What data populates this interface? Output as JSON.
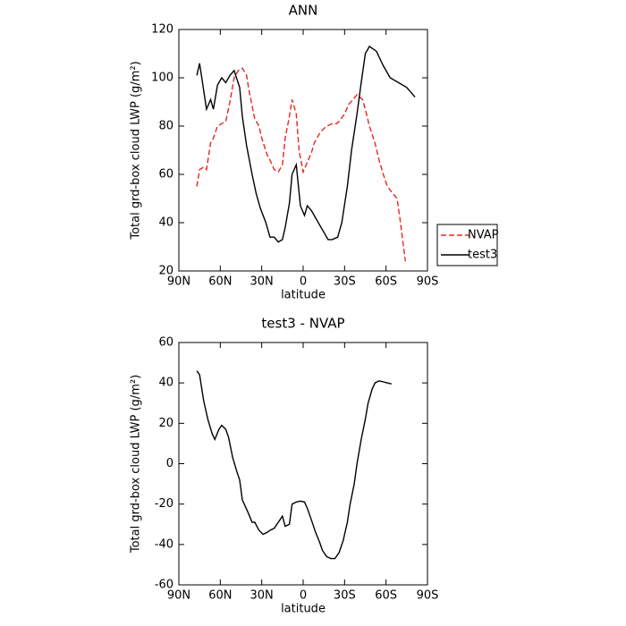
{
  "chart_data": [
    {
      "type": "line",
      "title": "ANN",
      "xlabel": "latitude",
      "ylabel": "Total grd-box cloud LWP (g/m²)",
      "xlim": [
        90,
        -90
      ],
      "xticks": [
        {
          "value": 90,
          "label": "90N"
        },
        {
          "value": 60,
          "label": "60N"
        },
        {
          "value": 30,
          "label": "30N"
        },
        0,
        {
          "value": -30,
          "label": "30S"
        },
        {
          "value": -60,
          "label": "60S"
        },
        {
          "value": -90,
          "label": "90S"
        }
      ],
      "ylim": [
        20,
        120
      ],
      "yticks": [
        20,
        40,
        60,
        80,
        100,
        120
      ],
      "legend": "right",
      "series": [
        {
          "name": "NVAP",
          "color": "#e8261f",
          "dash": true,
          "x": [
            77,
            75,
            72,
            70,
            67,
            65,
            62,
            59,
            56,
            53,
            50,
            47,
            44,
            41,
            39,
            35,
            32,
            30,
            26,
            24,
            21,
            18,
            15,
            13,
            10,
            8,
            5,
            3,
            0,
            -3,
            -6,
            -8,
            -12,
            -15,
            -17,
            -21,
            -24,
            -26,
            -30,
            -33,
            -36,
            -39,
            -43,
            -45,
            -48,
            -52,
            -55,
            -58,
            -61,
            -65,
            -68,
            -70,
            -72,
            -74
          ],
          "values": [
            55,
            62,
            63,
            62,
            73,
            75,
            80,
            81,
            82,
            90,
            100,
            103,
            104,
            101,
            94,
            83,
            80,
            75,
            68,
            66,
            62,
            61,
            64,
            75,
            84,
            91,
            85,
            70,
            61,
            65,
            69,
            73,
            77,
            79,
            80,
            81,
            81,
            82,
            85,
            89,
            91,
            93,
            91,
            87,
            80,
            73,
            66,
            60,
            55,
            52,
            50,
            42,
            33,
            24
          ]
        },
        {
          "name": "test3",
          "color": "#000000",
          "dash": false,
          "x": [
            77,
            75,
            70,
            67,
            65,
            62,
            59,
            56,
            53,
            50,
            46,
            44,
            41,
            37,
            34,
            31,
            27,
            24,
            21,
            18,
            15,
            13,
            10,
            8,
            5,
            2,
            -1,
            -3,
            -6,
            -9,
            -12,
            -15,
            -18,
            -21,
            -25,
            -28,
            -32,
            -35,
            -39,
            -42,
            -45,
            -48,
            -53,
            -58,
            -63,
            -69,
            -75,
            -81
          ],
          "values": [
            101,
            106,
            87,
            91,
            87,
            97,
            100,
            98,
            101,
            103,
            96,
            84,
            72,
            60,
            52,
            46,
            40,
            34,
            34,
            32,
            33,
            38,
            48,
            60,
            64,
            47,
            43,
            47,
            45,
            42,
            39,
            36,
            33,
            33,
            34,
            40,
            55,
            70,
            85,
            98,
            110,
            113,
            111,
            105,
            100,
            98,
            96,
            92
          ]
        }
      ]
    },
    {
      "type": "line",
      "title": "test3 - NVAP",
      "xlabel": "latitude",
      "ylabel": "Total grd-box cloud LWP (g/m²)",
      "xlim": [
        90,
        -90
      ],
      "xticks": [
        {
          "value": 90,
          "label": "90N"
        },
        {
          "value": 60,
          "label": "60N"
        },
        {
          "value": 30,
          "label": "30N"
        },
        0,
        {
          "value": -30,
          "label": "30S"
        },
        {
          "value": -60,
          "label": "60S"
        },
        {
          "value": -90,
          "label": "90S"
        }
      ],
      "ylim": [
        -60,
        60
      ],
      "yticks": [
        -60,
        -40,
        -20,
        0,
        20,
        40,
        60
      ],
      "series": [
        {
          "color": "#000000",
          "dash": false,
          "x": [
            77,
            75,
            72,
            69,
            66,
            64,
            61,
            59,
            56,
            54,
            51,
            48,
            46,
            44,
            40,
            37,
            35,
            32,
            29,
            26,
            24,
            21,
            18,
            15,
            13,
            10,
            8,
            5,
            2,
            -1,
            -3,
            -6,
            -9,
            -12,
            -14,
            -17,
            -20,
            -23,
            -26,
            -29,
            -32,
            -34,
            -37,
            -39,
            -42,
            -45,
            -47,
            -50,
            -52,
            -55,
            -58,
            -61,
            -64
          ],
          "values": [
            46,
            44,
            31,
            22,
            15,
            12,
            17,
            19,
            17,
            13,
            3,
            -4,
            -8,
            -18,
            -24,
            -29,
            -29,
            -33,
            -35,
            -34,
            -33,
            -32,
            -29,
            -26,
            -31,
            -30,
            -20,
            -19,
            -18.5,
            -19,
            -22,
            -28,
            -34,
            -39,
            -43,
            -46,
            -47,
            -47,
            -44,
            -38,
            -29,
            -20,
            -10,
            0,
            12,
            22,
            30,
            37,
            40,
            41,
            40.5,
            40,
            39.5
          ]
        }
      ]
    }
  ]
}
